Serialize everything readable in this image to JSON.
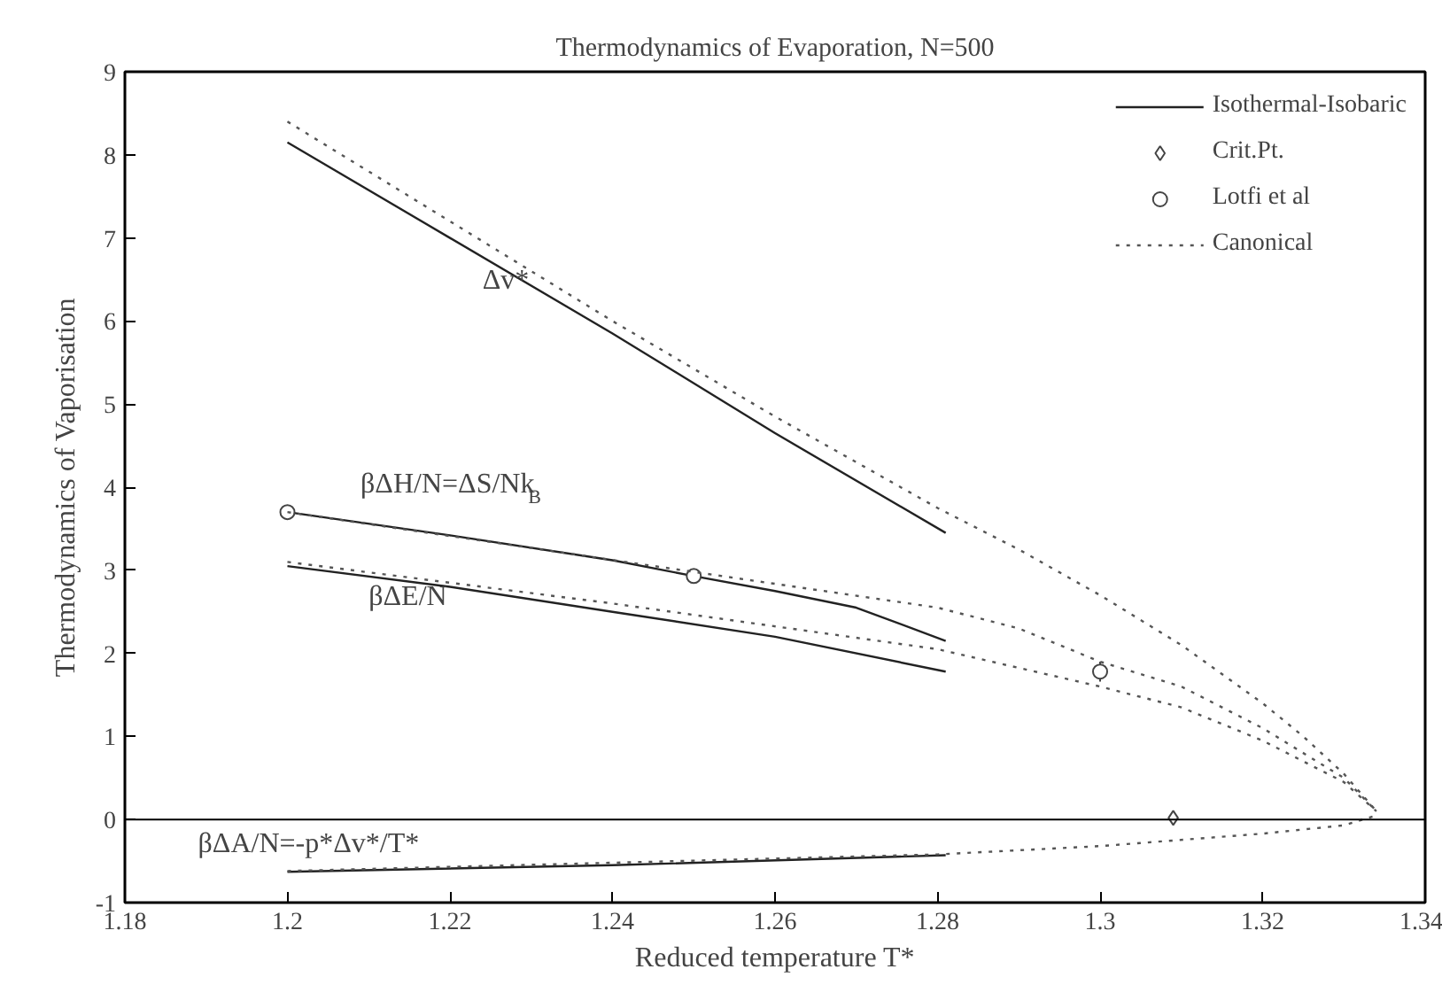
{
  "chart_data": {
    "type": "line",
    "title": "Thermodynamics of Evaporation, N=500",
    "xlabel": "Reduced temperature T*",
    "ylabel": "Thermodynamics of Vaporisation",
    "xlim": [
      1.18,
      1.34
    ],
    "xticks": [
      1.18,
      1.2,
      1.22,
      1.24,
      1.26,
      1.28,
      1.3,
      1.32,
      1.34
    ],
    "ylim": [
      -1,
      9
    ],
    "yticks": [
      -1,
      0,
      1,
      2,
      3,
      4,
      5,
      6,
      7,
      8,
      9
    ],
    "grid": false,
    "legend": "top right",
    "marker": "none",
    "ref_lines": [
      {
        "axis": "y",
        "value": 0,
        "color": "#000000",
        "line_style": "solid"
      }
    ],
    "series": [
      {
        "name": "Isothermal-Isobaric",
        "line_style": "solid",
        "color": "#222222",
        "x": [
          1.2,
          1.22,
          1.24,
          1.26,
          1.281
        ],
        "values": [
          8.15,
          7.0,
          5.85,
          4.65,
          3.45
        ]
      },
      {
        "line_style": "solid",
        "color": "#222222",
        "x": [
          1.2,
          1.22,
          1.24,
          1.25,
          1.26,
          1.27,
          1.281
        ],
        "values": [
          3.7,
          3.42,
          3.12,
          2.93,
          2.75,
          2.55,
          2.15
        ]
      },
      {
        "line_style": "solid",
        "color": "#222222",
        "x": [
          1.2,
          1.22,
          1.24,
          1.26,
          1.281
        ],
        "values": [
          3.05,
          2.8,
          2.5,
          2.2,
          1.78
        ]
      },
      {
        "line_style": "solid",
        "color": "#222222",
        "x": [
          1.2,
          1.24,
          1.281
        ],
        "values": [
          -0.63,
          -0.55,
          -0.43
        ]
      },
      {
        "name": "Crit.Pt.",
        "type": "scatter",
        "marker": "diamond",
        "color": "#444444",
        "x": [
          1.309
        ],
        "values": [
          0.02
        ]
      },
      {
        "name": "Lotfi et al",
        "type": "scatter",
        "marker": "circle",
        "color": "#444444",
        "x": [
          1.2,
          1.25,
          1.3
        ],
        "values": [
          3.7,
          2.93,
          1.78
        ],
        "errors": [
          0.05,
          0.05,
          0.12
        ]
      },
      {
        "name": "Canonical",
        "line_style": "dotted",
        "color": "#555555",
        "x": [
          1.2,
          1.22,
          1.24,
          1.26,
          1.28,
          1.29,
          1.3,
          1.31,
          1.32,
          1.325,
          1.33,
          1.334
        ],
        "values": [
          8.4,
          7.2,
          6.0,
          4.85,
          3.75,
          3.25,
          2.7,
          2.1,
          1.4,
          1.0,
          0.55,
          0.1
        ]
      },
      {
        "line_style": "dotted",
        "color": "#555555",
        "x": [
          1.2,
          1.25,
          1.28,
          1.29,
          1.3,
          1.31,
          1.32,
          1.33,
          1.334
        ],
        "values": [
          3.7,
          2.98,
          2.55,
          2.3,
          1.9,
          1.6,
          1.1,
          0.5,
          0.1
        ]
      },
      {
        "line_style": "dotted",
        "color": "#555555",
        "x": [
          1.2,
          1.24,
          1.28,
          1.3,
          1.31,
          1.32,
          1.33,
          1.334
        ],
        "values": [
          3.1,
          2.6,
          2.05,
          1.6,
          1.35,
          0.95,
          0.45,
          0.1
        ]
      },
      {
        "line_style": "dotted",
        "color": "#555555",
        "x": [
          1.2,
          1.28,
          1.3,
          1.32,
          1.33,
          1.334
        ],
        "values": [
          -0.62,
          -0.42,
          -0.32,
          -0.17,
          -0.07,
          0.05
        ]
      }
    ],
    "annotations": [
      "Δv*",
      "βΔH/N=ΔS/Nk$_{B}$",
      "βΔE/N",
      "βΔA/N=-p*Δv*/T*"
    ]
  }
}
